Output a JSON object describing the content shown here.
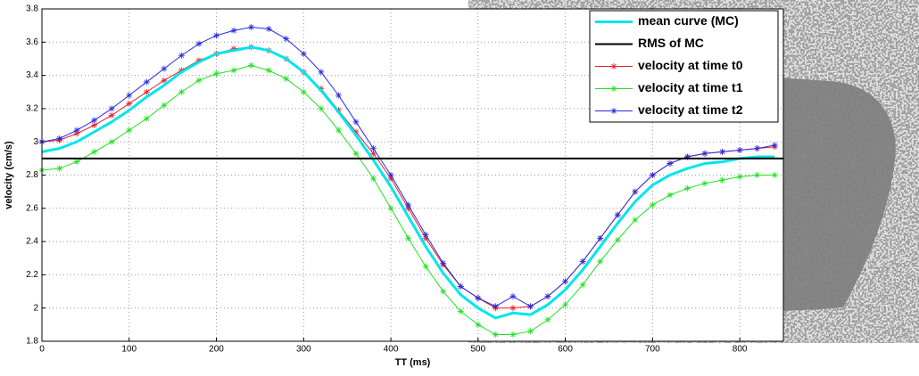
{
  "chart_data": {
    "type": "line",
    "x_label": "TT (ms)",
    "y_label": "velocity (cm/s)",
    "x": [
      0,
      20,
      40,
      60,
      80,
      100,
      120,
      140,
      160,
      180,
      200,
      220,
      240,
      260,
      280,
      300,
      320,
      340,
      360,
      380,
      400,
      420,
      440,
      460,
      480,
      500,
      520,
      540,
      560,
      580,
      600,
      620,
      640,
      660,
      680,
      700,
      720,
      740,
      760,
      780,
      800,
      820,
      840
    ],
    "series": [
      {
        "name": "mean curve (MC)",
        "color": "#00e5ee",
        "line_width": 3,
        "marker": "none",
        "values": [
          2.94,
          2.96,
          3.0,
          3.06,
          3.12,
          3.19,
          3.27,
          3.34,
          3.42,
          3.48,
          3.53,
          3.55,
          3.57,
          3.55,
          3.5,
          3.42,
          3.31,
          3.18,
          3.04,
          2.89,
          2.73,
          2.55,
          2.37,
          2.21,
          2.08,
          2.0,
          1.94,
          1.97,
          1.96,
          2.02,
          2.11,
          2.23,
          2.37,
          2.51,
          2.64,
          2.74,
          2.8,
          2.84,
          2.87,
          2.88,
          2.9,
          2.91,
          2.91
        ]
      },
      {
        "name": "RMS of MC",
        "color": "#000000",
        "line_width": 2,
        "marker": "none",
        "x": [
          0,
          850
        ],
        "values": [
          2.9,
          2.9
        ]
      },
      {
        "name": "velocity at time t0",
        "color": "#e8202a",
        "line_width": 1,
        "marker": "star",
        "values": [
          3.0,
          3.01,
          3.05,
          3.1,
          3.16,
          3.23,
          3.3,
          3.37,
          3.43,
          3.49,
          3.53,
          3.56,
          3.57,
          3.55,
          3.5,
          3.42,
          3.32,
          3.19,
          3.06,
          2.93,
          2.78,
          2.6,
          2.42,
          2.26,
          2.13,
          2.06,
          2.0,
          2.0,
          2.01,
          2.07,
          2.16,
          2.28,
          2.42,
          2.56,
          2.7,
          2.8,
          2.87,
          2.91,
          2.93,
          2.94,
          2.95,
          2.96,
          2.97
        ]
      },
      {
        "name": "velocity at time t1",
        "color": "#22e022",
        "line_width": 1,
        "marker": "star",
        "values": [
          2.83,
          2.84,
          2.88,
          2.94,
          3.0,
          3.07,
          3.14,
          3.22,
          3.3,
          3.37,
          3.41,
          3.43,
          3.46,
          3.43,
          3.38,
          3.3,
          3.2,
          3.07,
          2.93,
          2.78,
          2.6,
          2.42,
          2.25,
          2.1,
          1.98,
          1.9,
          1.84,
          1.84,
          1.86,
          1.93,
          2.02,
          2.14,
          2.28,
          2.41,
          2.53,
          2.62,
          2.68,
          2.72,
          2.75,
          2.77,
          2.79,
          2.8,
          2.8
        ]
      },
      {
        "name": "velocity at time t2",
        "color": "#2a2ae0",
        "line_width": 1,
        "marker": "star",
        "values": [
          3.0,
          3.02,
          3.07,
          3.13,
          3.2,
          3.28,
          3.36,
          3.44,
          3.52,
          3.59,
          3.64,
          3.67,
          3.69,
          3.68,
          3.62,
          3.53,
          3.42,
          3.28,
          3.12,
          2.96,
          2.8,
          2.62,
          2.44,
          2.27,
          2.13,
          2.06,
          2.01,
          2.07,
          2.01,
          2.07,
          2.16,
          2.28,
          2.42,
          2.56,
          2.7,
          2.8,
          2.87,
          2.91,
          2.93,
          2.94,
          2.95,
          2.96,
          2.98
        ]
      }
    ],
    "xlim": [
      0,
      850
    ],
    "xticks": [
      0,
      100,
      200,
      300,
      400,
      500,
      600,
      700,
      800
    ],
    "ylim": [
      1.8,
      3.8
    ],
    "yticks": [
      1.8,
      2,
      2.2,
      2.4,
      2.6,
      2.8,
      3,
      3.2,
      3.4,
      3.6,
      3.8
    ],
    "grid": true,
    "grid_style": "dotted",
    "legend": "upper right"
  }
}
